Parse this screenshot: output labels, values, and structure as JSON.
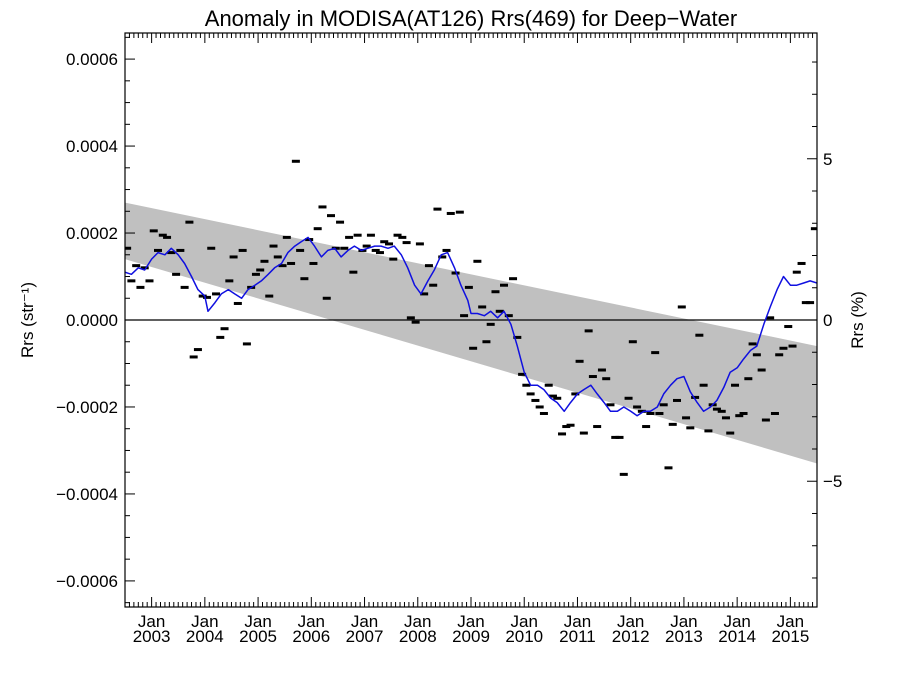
{
  "chart_data": {
    "type": "line",
    "title": "Anomaly in MODISA(AT126) Rrs(469) for Deep−Water",
    "ylabel_left": "Rrs (str⁻¹)",
    "ylabel_right": "Rrs (%)",
    "x_range": [
      2002.5,
      2015.5
    ],
    "ylim": [
      -0.00066,
      0.00066
    ],
    "y2lim": [
      -8.9,
      8.9
    ],
    "x_ticks": [
      {
        "x": 2003.0,
        "l1": "Jan",
        "l2": "2003"
      },
      {
        "x": 2004.0,
        "l1": "Jan",
        "l2": "2004"
      },
      {
        "x": 2005.0,
        "l1": "Jan",
        "l2": "2005"
      },
      {
        "x": 2006.0,
        "l1": "Jan",
        "l2": "2006"
      },
      {
        "x": 2007.0,
        "l1": "Jan",
        "l2": "2007"
      },
      {
        "x": 2008.0,
        "l1": "Jan",
        "l2": "2008"
      },
      {
        "x": 2009.0,
        "l1": "Jan",
        "l2": "2009"
      },
      {
        "x": 2010.0,
        "l1": "Jan",
        "l2": "2010"
      },
      {
        "x": 2011.0,
        "l1": "Jan",
        "l2": "2011"
      },
      {
        "x": 2012.0,
        "l1": "Jan",
        "l2": "2012"
      },
      {
        "x": 2013.0,
        "l1": "Jan",
        "l2": "2013"
      },
      {
        "x": 2014.0,
        "l1": "Jan",
        "l2": "2014"
      },
      {
        "x": 2015.0,
        "l1": "Jan",
        "l2": "2015"
      }
    ],
    "y_ticks": [
      {
        "v": 0.0006,
        "label": "0.0006"
      },
      {
        "v": 0.0004,
        "label": "0.0004"
      },
      {
        "v": 0.0002,
        "label": "0.0002"
      },
      {
        "v": 0.0,
        "label": "0.0000"
      },
      {
        "v": -0.0002,
        "label": "−0.0002"
      },
      {
        "v": -0.0004,
        "label": "−0.0004"
      },
      {
        "v": -0.0006,
        "label": "−0.0006"
      }
    ],
    "y2_ticks": [
      {
        "v": 5,
        "label": "5"
      },
      {
        "v": 0,
        "label": "0"
      },
      {
        "v": -5,
        "label": "−5"
      }
    ],
    "band": {
      "start": [
        2002.5,
        0.00027,
        0.00014
      ],
      "end": [
        2015.5,
        -6e-05,
        -0.00033
      ]
    },
    "scatter": {
      "color": "#000000",
      "points": [
        [
          2002.54,
          0.000165
        ],
        [
          2002.62,
          9e-05
        ],
        [
          2002.71,
          0.000125
        ],
        [
          2002.79,
          7.5e-05
        ],
        [
          2002.87,
          0.00012
        ],
        [
          2002.96,
          9e-05
        ],
        [
          2003.04,
          0.000205
        ],
        [
          2003.12,
          0.00016
        ],
        [
          2003.21,
          0.000195
        ],
        [
          2003.29,
          0.00019
        ],
        [
          2003.37,
          0.000155
        ],
        [
          2003.46,
          0.000105
        ],
        [
          2003.54,
          0.00016
        ],
        [
          2003.62,
          7.5e-05
        ],
        [
          2003.71,
          0.000225
        ],
        [
          2003.79,
          -8.5e-05
        ],
        [
          2003.87,
          -6.8e-05
        ],
        [
          2003.96,
          5.5e-05
        ],
        [
          2004.04,
          5.2e-05
        ],
        [
          2004.12,
          0.000165
        ],
        [
          2004.21,
          6e-05
        ],
        [
          2004.29,
          -4e-05
        ],
        [
          2004.37,
          -2e-05
        ],
        [
          2004.46,
          9e-05
        ],
        [
          2004.54,
          0.000145
        ],
        [
          2004.62,
          3.8e-05
        ],
        [
          2004.71,
          0.00016
        ],
        [
          2004.79,
          -5.5e-05
        ],
        [
          2004.87,
          7.5e-05
        ],
        [
          2004.96,
          0.000105
        ],
        [
          2005.04,
          0.000115
        ],
        [
          2005.12,
          0.000135
        ],
        [
          2005.21,
          5.5e-05
        ],
        [
          2005.29,
          0.00017
        ],
        [
          2005.37,
          0.000145
        ],
        [
          2005.46,
          0.000125
        ],
        [
          2005.54,
          0.00019
        ],
        [
          2005.62,
          0.00013
        ],
        [
          2005.71,
          0.000365
        ],
        [
          2005.79,
          0.00016
        ],
        [
          2005.87,
          9.5e-05
        ],
        [
          2005.96,
          0.000185
        ],
        [
          2006.04,
          0.00013
        ],
        [
          2006.12,
          0.00021
        ],
        [
          2006.21,
          0.00026
        ],
        [
          2006.29,
          5e-05
        ],
        [
          2006.37,
          0.00024
        ],
        [
          2006.46,
          0.000165
        ],
        [
          2006.54,
          0.000225
        ],
        [
          2006.62,
          0.000165
        ],
        [
          2006.71,
          0.00019
        ],
        [
          2006.79,
          0.00011
        ],
        [
          2006.87,
          0.000195
        ],
        [
          2006.96,
          0.00016
        ],
        [
          2007.04,
          0.00017
        ],
        [
          2007.12,
          0.000195
        ],
        [
          2007.21,
          0.00016
        ],
        [
          2007.29,
          0.000155
        ],
        [
          2007.37,
          0.00018
        ],
        [
          2007.46,
          0.000175
        ],
        [
          2007.54,
          0.00014
        ],
        [
          2007.62,
          0.000195
        ],
        [
          2007.71,
          0.00019
        ],
        [
          2007.79,
          0.000178
        ],
        [
          2007.87,
          5e-06
        ],
        [
          2007.96,
          -5e-06
        ],
        [
          2008.04,
          0.000175
        ],
        [
          2008.12,
          6e-05
        ],
        [
          2008.21,
          0.000125
        ],
        [
          2008.29,
          8e-05
        ],
        [
          2008.37,
          0.000255
        ],
        [
          2008.46,
          0.000145
        ],
        [
          2008.54,
          0.00016
        ],
        [
          2008.62,
          0.000245
        ],
        [
          2008.71,
          0.000108
        ],
        [
          2008.79,
          0.000248
        ],
        [
          2008.87,
          1e-05
        ],
        [
          2008.96,
          7.5e-05
        ],
        [
          2009.04,
          -6.5e-05
        ],
        [
          2009.12,
          0.000135
        ],
        [
          2009.21,
          3e-05
        ],
        [
          2009.29,
          -5e-05
        ],
        [
          2009.37,
          -1e-05
        ],
        [
          2009.46,
          6.5e-05
        ],
        [
          2009.54,
          2e-05
        ],
        [
          2009.62,
          8e-05
        ],
        [
          2009.71,
          1e-05
        ],
        [
          2009.79,
          9.5e-05
        ],
        [
          2009.87,
          -4e-05
        ],
        [
          2009.96,
          -0.000125
        ],
        [
          2010.04,
          -0.00015
        ],
        [
          2010.12,
          -0.00017
        ],
        [
          2010.21,
          -0.000185
        ],
        [
          2010.29,
          -0.0002
        ],
        [
          2010.37,
          -0.000215
        ],
        [
          2010.46,
          -0.00015
        ],
        [
          2010.54,
          -0.000175
        ],
        [
          2010.62,
          -0.00018
        ],
        [
          2010.71,
          -0.000262
        ],
        [
          2010.79,
          -0.000245
        ],
        [
          2010.87,
          -0.000242
        ],
        [
          2010.96,
          -0.00017
        ],
        [
          2011.04,
          -9.5e-05
        ],
        [
          2011.12,
          -0.00026
        ],
        [
          2011.21,
          -2.5e-05
        ],
        [
          2011.29,
          -0.00013
        ],
        [
          2011.37,
          -0.000245
        ],
        [
          2011.46,
          -0.000115
        ],
        [
          2011.54,
          -0.000135
        ],
        [
          2011.62,
          -0.000195
        ],
        [
          2011.71,
          -0.00027
        ],
        [
          2011.79,
          -0.00027
        ],
        [
          2011.87,
          -0.000355
        ],
        [
          2011.96,
          -0.00018
        ],
        [
          2012.04,
          -5e-05
        ],
        [
          2012.12,
          -0.0002
        ],
        [
          2012.21,
          -0.00021
        ],
        [
          2012.29,
          -0.000245
        ],
        [
          2012.37,
          -0.000215
        ],
        [
          2012.46,
          -7.5e-05
        ],
        [
          2012.54,
          -0.000215
        ],
        [
          2012.62,
          -0.000195
        ],
        [
          2012.71,
          -0.00034
        ],
        [
          2012.79,
          -0.00024
        ],
        [
          2012.87,
          -0.000185
        ],
        [
          2012.96,
          3e-05
        ],
        [
          2013.04,
          -0.000225
        ],
        [
          2013.12,
          -0.000248
        ],
        [
          2013.21,
          -0.000178
        ],
        [
          2013.29,
          -3.5e-05
        ],
        [
          2013.37,
          -0.00015
        ],
        [
          2013.46,
          -0.000255
        ],
        [
          2013.54,
          -0.000195
        ],
        [
          2013.62,
          -0.000205
        ],
        [
          2013.71,
          -0.00021
        ],
        [
          2013.79,
          -0.000225
        ],
        [
          2013.87,
          -0.00026
        ],
        [
          2013.96,
          -0.00015
        ],
        [
          2014.04,
          -0.00022
        ],
        [
          2014.12,
          -0.000215
        ],
        [
          2014.21,
          -0.000135
        ],
        [
          2014.29,
          -5.5e-05
        ],
        [
          2014.37,
          -8e-05
        ],
        [
          2014.46,
          -0.000115
        ],
        [
          2014.54,
          -0.00023
        ],
        [
          2014.62,
          5e-06
        ],
        [
          2014.71,
          -0.000215
        ],
        [
          2014.79,
          -8e-05
        ],
        [
          2014.87,
          -6.5e-05
        ],
        [
          2014.96,
          -1.5e-05
        ],
        [
          2015.04,
          -6e-05
        ],
        [
          2015.12,
          0.00011
        ],
        [
          2015.21,
          0.00013
        ],
        [
          2015.29,
          4e-05
        ],
        [
          2015.37,
          4e-05
        ],
        [
          2015.46,
          0.00021
        ]
      ]
    },
    "series": [
      {
        "color": "#1010e0",
        "points": [
          [
            2002.5,
            0.00011
          ],
          [
            2002.62,
            0.000105
          ],
          [
            2002.75,
            0.00012
          ],
          [
            2002.87,
            0.000115
          ],
          [
            2003.0,
            0.00014
          ],
          [
            2003.12,
            0.000155
          ],
          [
            2003.25,
            0.00015
          ],
          [
            2003.37,
            0.000165
          ],
          [
            2003.5,
            0.00015
          ],
          [
            2003.62,
            0.00013
          ],
          [
            2003.75,
            0.0001
          ],
          [
            2003.87,
            7e-05
          ],
          [
            2004.0,
            5.5e-05
          ],
          [
            2004.06,
            2e-05
          ],
          [
            2004.19,
            4e-05
          ],
          [
            2004.31,
            6e-05
          ],
          [
            2004.44,
            7e-05
          ],
          [
            2004.56,
            6e-05
          ],
          [
            2004.69,
            5e-05
          ],
          [
            2004.81,
            7e-05
          ],
          [
            2004.94,
            8e-05
          ],
          [
            2005.06,
            9e-05
          ],
          [
            2005.19,
            0.000105
          ],
          [
            2005.31,
            0.00012
          ],
          [
            2005.44,
            0.00013
          ],
          [
            2005.56,
            0.000155
          ],
          [
            2005.69,
            0.00017
          ],
          [
            2005.81,
            0.00018
          ],
          [
            2005.94,
            0.00019
          ],
          [
            2006.06,
            0.00017
          ],
          [
            2006.19,
            0.000145
          ],
          [
            2006.31,
            0.00016
          ],
          [
            2006.44,
            0.000165
          ],
          [
            2006.56,
            0.000145
          ],
          [
            2006.69,
            0.00016
          ],
          [
            2006.81,
            0.00017
          ],
          [
            2006.94,
            0.00016
          ],
          [
            2007.06,
            0.000165
          ],
          [
            2007.19,
            0.00017
          ],
          [
            2007.31,
            0.00017
          ],
          [
            2007.44,
            0.000165
          ],
          [
            2007.56,
            0.00017
          ],
          [
            2007.69,
            0.00015
          ],
          [
            2007.81,
            0.00012
          ],
          [
            2007.94,
            8e-05
          ],
          [
            2008.06,
            6e-05
          ],
          [
            2008.19,
            9e-05
          ],
          [
            2008.31,
            0.000115
          ],
          [
            2008.44,
            0.00015
          ],
          [
            2008.56,
            0.000155
          ],
          [
            2008.69,
            0.00012
          ],
          [
            2008.81,
            8e-05
          ],
          [
            2008.94,
            4.5e-05
          ],
          [
            2009.0,
            1.5e-05
          ],
          [
            2009.12,
            1.5e-05
          ],
          [
            2009.25,
            1e-05
          ],
          [
            2009.37,
            2e-05
          ],
          [
            2009.5,
            5e-06
          ],
          [
            2009.62,
            2e-05
          ],
          [
            2009.75,
            -1e-05
          ],
          [
            2009.87,
            -6e-05
          ],
          [
            2010.0,
            -0.00012
          ],
          [
            2010.12,
            -0.00015
          ],
          [
            2010.25,
            -0.00015
          ],
          [
            2010.37,
            -0.00016
          ],
          [
            2010.5,
            -0.00018
          ],
          [
            2010.62,
            -0.00019
          ],
          [
            2010.75,
            -0.00021
          ],
          [
            2010.87,
            -0.00019
          ],
          [
            2011.0,
            -0.00017
          ],
          [
            2011.12,
            -0.00016
          ],
          [
            2011.25,
            -0.00015
          ],
          [
            2011.37,
            -0.00017
          ],
          [
            2011.5,
            -0.00019
          ],
          [
            2011.62,
            -0.00021
          ],
          [
            2011.75,
            -0.00021
          ],
          [
            2011.87,
            -0.0002
          ],
          [
            2012.0,
            -0.00021
          ],
          [
            2012.12,
            -0.00022
          ],
          [
            2012.25,
            -0.00021
          ],
          [
            2012.37,
            -0.00021
          ],
          [
            2012.5,
            -0.0002
          ],
          [
            2012.62,
            -0.00017
          ],
          [
            2012.75,
            -0.00015
          ],
          [
            2012.87,
            -0.000135
          ],
          [
            2013.0,
            -0.00013
          ],
          [
            2013.12,
            -0.000165
          ],
          [
            2013.25,
            -0.00019
          ],
          [
            2013.37,
            -0.00021
          ],
          [
            2013.5,
            -0.0002
          ],
          [
            2013.62,
            -0.000185
          ],
          [
            2013.75,
            -0.000155
          ],
          [
            2013.87,
            -0.00012
          ],
          [
            2014.0,
            -0.00011
          ],
          [
            2014.12,
            -9e-05
          ],
          [
            2014.25,
            -7e-05
          ],
          [
            2014.37,
            -6e-05
          ],
          [
            2014.5,
            -1e-05
          ],
          [
            2014.62,
            3e-05
          ],
          [
            2014.75,
            7e-05
          ],
          [
            2014.87,
            0.0001
          ],
          [
            2015.0,
            8e-05
          ],
          [
            2015.12,
            8e-05
          ],
          [
            2015.25,
            8.5e-05
          ],
          [
            2015.37,
            9e-05
          ],
          [
            2015.5,
            8.5e-05
          ]
        ]
      }
    ],
    "grid": false,
    "zero_line": true
  }
}
